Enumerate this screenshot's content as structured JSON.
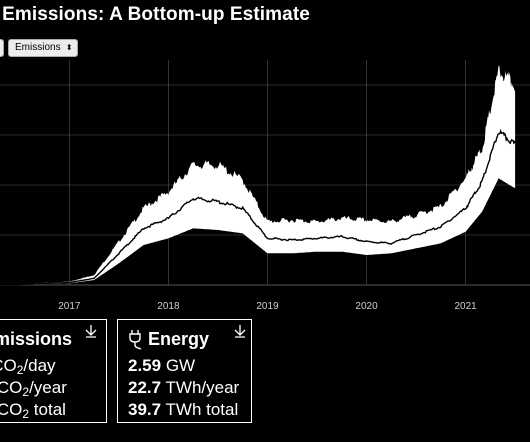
{
  "title": "um Emissions: A Bottom-up Estimate",
  "controls": {
    "metric_select": {
      "value": "Emissions",
      "arrows": "⬍"
    }
  },
  "chart_data": {
    "type": "area",
    "title": "",
    "xlabel": "",
    "ylabel": "",
    "x_ticks": [
      "2017",
      "2018",
      "2019",
      "2020",
      "2021"
    ],
    "x": [
      "2016-01",
      "2016-07",
      "2017-01",
      "2017-04",
      "2017-07",
      "2017-10",
      "2018-01",
      "2018-04",
      "2018-07",
      "2018-10",
      "2019-01",
      "2019-04",
      "2019-07",
      "2019-10",
      "2020-01",
      "2020-04",
      "2020-07",
      "2020-10",
      "2021-01",
      "2021-03",
      "2021-05",
      "2021-07"
    ],
    "series": [
      {
        "values": [
          0.1,
          0.5,
          2,
          6,
          26,
          46,
          56,
          72,
          72,
          63,
          38,
          39,
          38,
          40,
          39,
          38,
          42,
          47,
          64,
          82,
          128,
          120
        ]
      },
      {
        "values": [
          0.1,
          0.3,
          1.5,
          4,
          19,
          34,
          40,
          52,
          50,
          46,
          28,
          27,
          28,
          29,
          26,
          25,
          30,
          35,
          46,
          62,
          92,
          84
        ]
      },
      {
        "values": [
          0.05,
          0.2,
          1,
          3,
          13,
          24,
          28,
          34,
          33,
          31,
          19,
          19,
          20,
          20,
          18,
          19,
          22,
          25,
          32,
          44,
          64,
          58
        ]
      }
    ],
    "colors": {
      "band": "#ffffff",
      "line": "#000000",
      "axis": "#555555",
      "background": "#000000"
    }
  },
  "cards": {
    "emissions": {
      "title": "Emissions",
      "rows": [
        {
          "value": "",
          "unit": "ktCO",
          "sub": "2",
          "suffix": "/day"
        },
        {
          "value": "",
          "unit": "MtCO",
          "sub": "2",
          "suffix": "/year"
        },
        {
          "value": "",
          "unit": "MtCO",
          "sub": "2",
          "suffix": " total"
        }
      ],
      "download_icon": "download-icon"
    },
    "energy": {
      "title": "Energy",
      "icon": "plug-icon",
      "rows": [
        {
          "value": "2.59",
          "unit": "GW"
        },
        {
          "value": "22.7",
          "unit": "TWh/year"
        },
        {
          "value": "39.7",
          "unit": "TWh total"
        }
      ],
      "download_icon": "download-icon"
    }
  }
}
